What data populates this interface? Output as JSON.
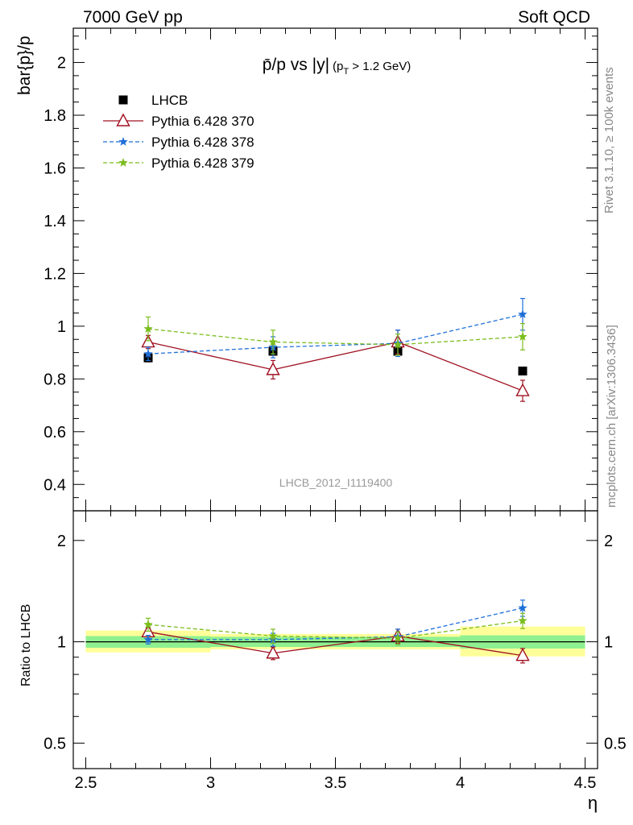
{
  "header": {
    "left": "7000 GeV pp",
    "right": "Soft QCD"
  },
  "side_labels": {
    "rivet": "Rivet 3.1.10, ≥ 100k events",
    "mcplots": "mcplots.cern.ch [arXiv:1306.3436]"
  },
  "watermark": "LHCB_2012_I1119400",
  "ylabel_main": "bar{p}/p",
  "ylabel_ratio": "Ratio to LHCB",
  "xlabel": "η",
  "title": {
    "main": "p̄/p vs |y|",
    "open": "(p",
    "sub": "T",
    "rest": " > 1.2 GeV)"
  },
  "colors": {
    "data": "#000000",
    "p370": "#a01020",
    "p378": "#1f6fd8",
    "p379": "#7bbd1e",
    "band_inner": "#8ff08f",
    "band_outer": "#ffff9a"
  },
  "chart_data": {
    "type": "scatter",
    "x": [
      2.75,
      3.25,
      3.75,
      4.25
    ],
    "x_bins": [
      [
        2.5,
        3.0
      ],
      [
        3.0,
        3.5
      ],
      [
        3.5,
        4.0
      ],
      [
        4.0,
        4.5
      ]
    ],
    "xlim": [
      2.45,
      4.55
    ],
    "xticks": [
      2.5,
      3,
      3.5,
      4,
      4.5
    ],
    "xtick_labels": [
      "2.5",
      "3",
      "3.5",
      "4",
      "4.5"
    ],
    "main": {
      "ylim": [
        0.3,
        2.13
      ],
      "yticks": [
        0.4,
        0.6,
        0.8,
        1.0,
        1.2,
        1.4,
        1.6,
        1.8,
        2.0
      ],
      "ytick_labels": [
        "0.4",
        "0.6",
        "0.8",
        "1",
        "1.2",
        "1.4",
        "1.6",
        "1.8",
        "2"
      ]
    },
    "ratio": {
      "scale": "log",
      "ylim": [
        0.42,
        2.45
      ],
      "yticks": [
        0.5,
        1,
        2
      ],
      "ytick_labels": [
        "0.5",
        "1",
        "2"
      ]
    },
    "legend_position": "top-left",
    "series": [
      {
        "name": "LHCB",
        "key": "data",
        "marker": "square",
        "line": "none",
        "y": [
          0.88,
          0.905,
          0.905,
          0.83
        ],
        "err": [
          0.015,
          0.015,
          0.015,
          0.01
        ],
        "ratio": [
          1.0,
          1.0,
          1.0,
          1.0
        ],
        "ratio_err": [
          0.0,
          0.0,
          0.0,
          0.0
        ]
      },
      {
        "name": "Pythia 6.428 370",
        "key": "p370",
        "marker": "triangle",
        "line": "solid",
        "y": [
          0.94,
          0.835,
          0.94,
          0.755
        ],
        "err": [
          0.025,
          0.035,
          0.045,
          0.04
        ],
        "ratio": [
          1.07,
          0.925,
          1.04,
          0.91
        ],
        "ratio_err": [
          0.03,
          0.04,
          0.05,
          0.045
        ]
      },
      {
        "name": "Pythia 6.428 378",
        "key": "p378",
        "marker": "star",
        "line": "dashed",
        "y": [
          0.895,
          0.92,
          0.935,
          1.045
        ],
        "err": [
          0.025,
          0.04,
          0.05,
          0.06
        ],
        "ratio": [
          1.015,
          1.015,
          1.035,
          1.26
        ],
        "ratio_err": [
          0.03,
          0.045,
          0.055,
          0.07
        ]
      },
      {
        "name": "Pythia 6.428 379",
        "key": "p379",
        "marker": "star",
        "line": "dashed",
        "y": [
          0.99,
          0.94,
          0.93,
          0.96
        ],
        "err": [
          0.045,
          0.045,
          0.04,
          0.05
        ],
        "ratio": [
          1.125,
          1.04,
          1.025,
          1.155
        ],
        "ratio_err": [
          0.05,
          0.05,
          0.045,
          0.06
        ]
      }
    ],
    "bands": {
      "inner": [
        [
          0.96,
          1.04
        ],
        [
          0.965,
          1.035
        ],
        [
          0.965,
          1.035
        ],
        [
          0.955,
          1.045
        ]
      ],
      "outer": [
        [
          0.93,
          1.08
        ],
        [
          0.95,
          1.055
        ],
        [
          0.95,
          1.055
        ],
        [
          0.905,
          1.11
        ]
      ]
    }
  }
}
